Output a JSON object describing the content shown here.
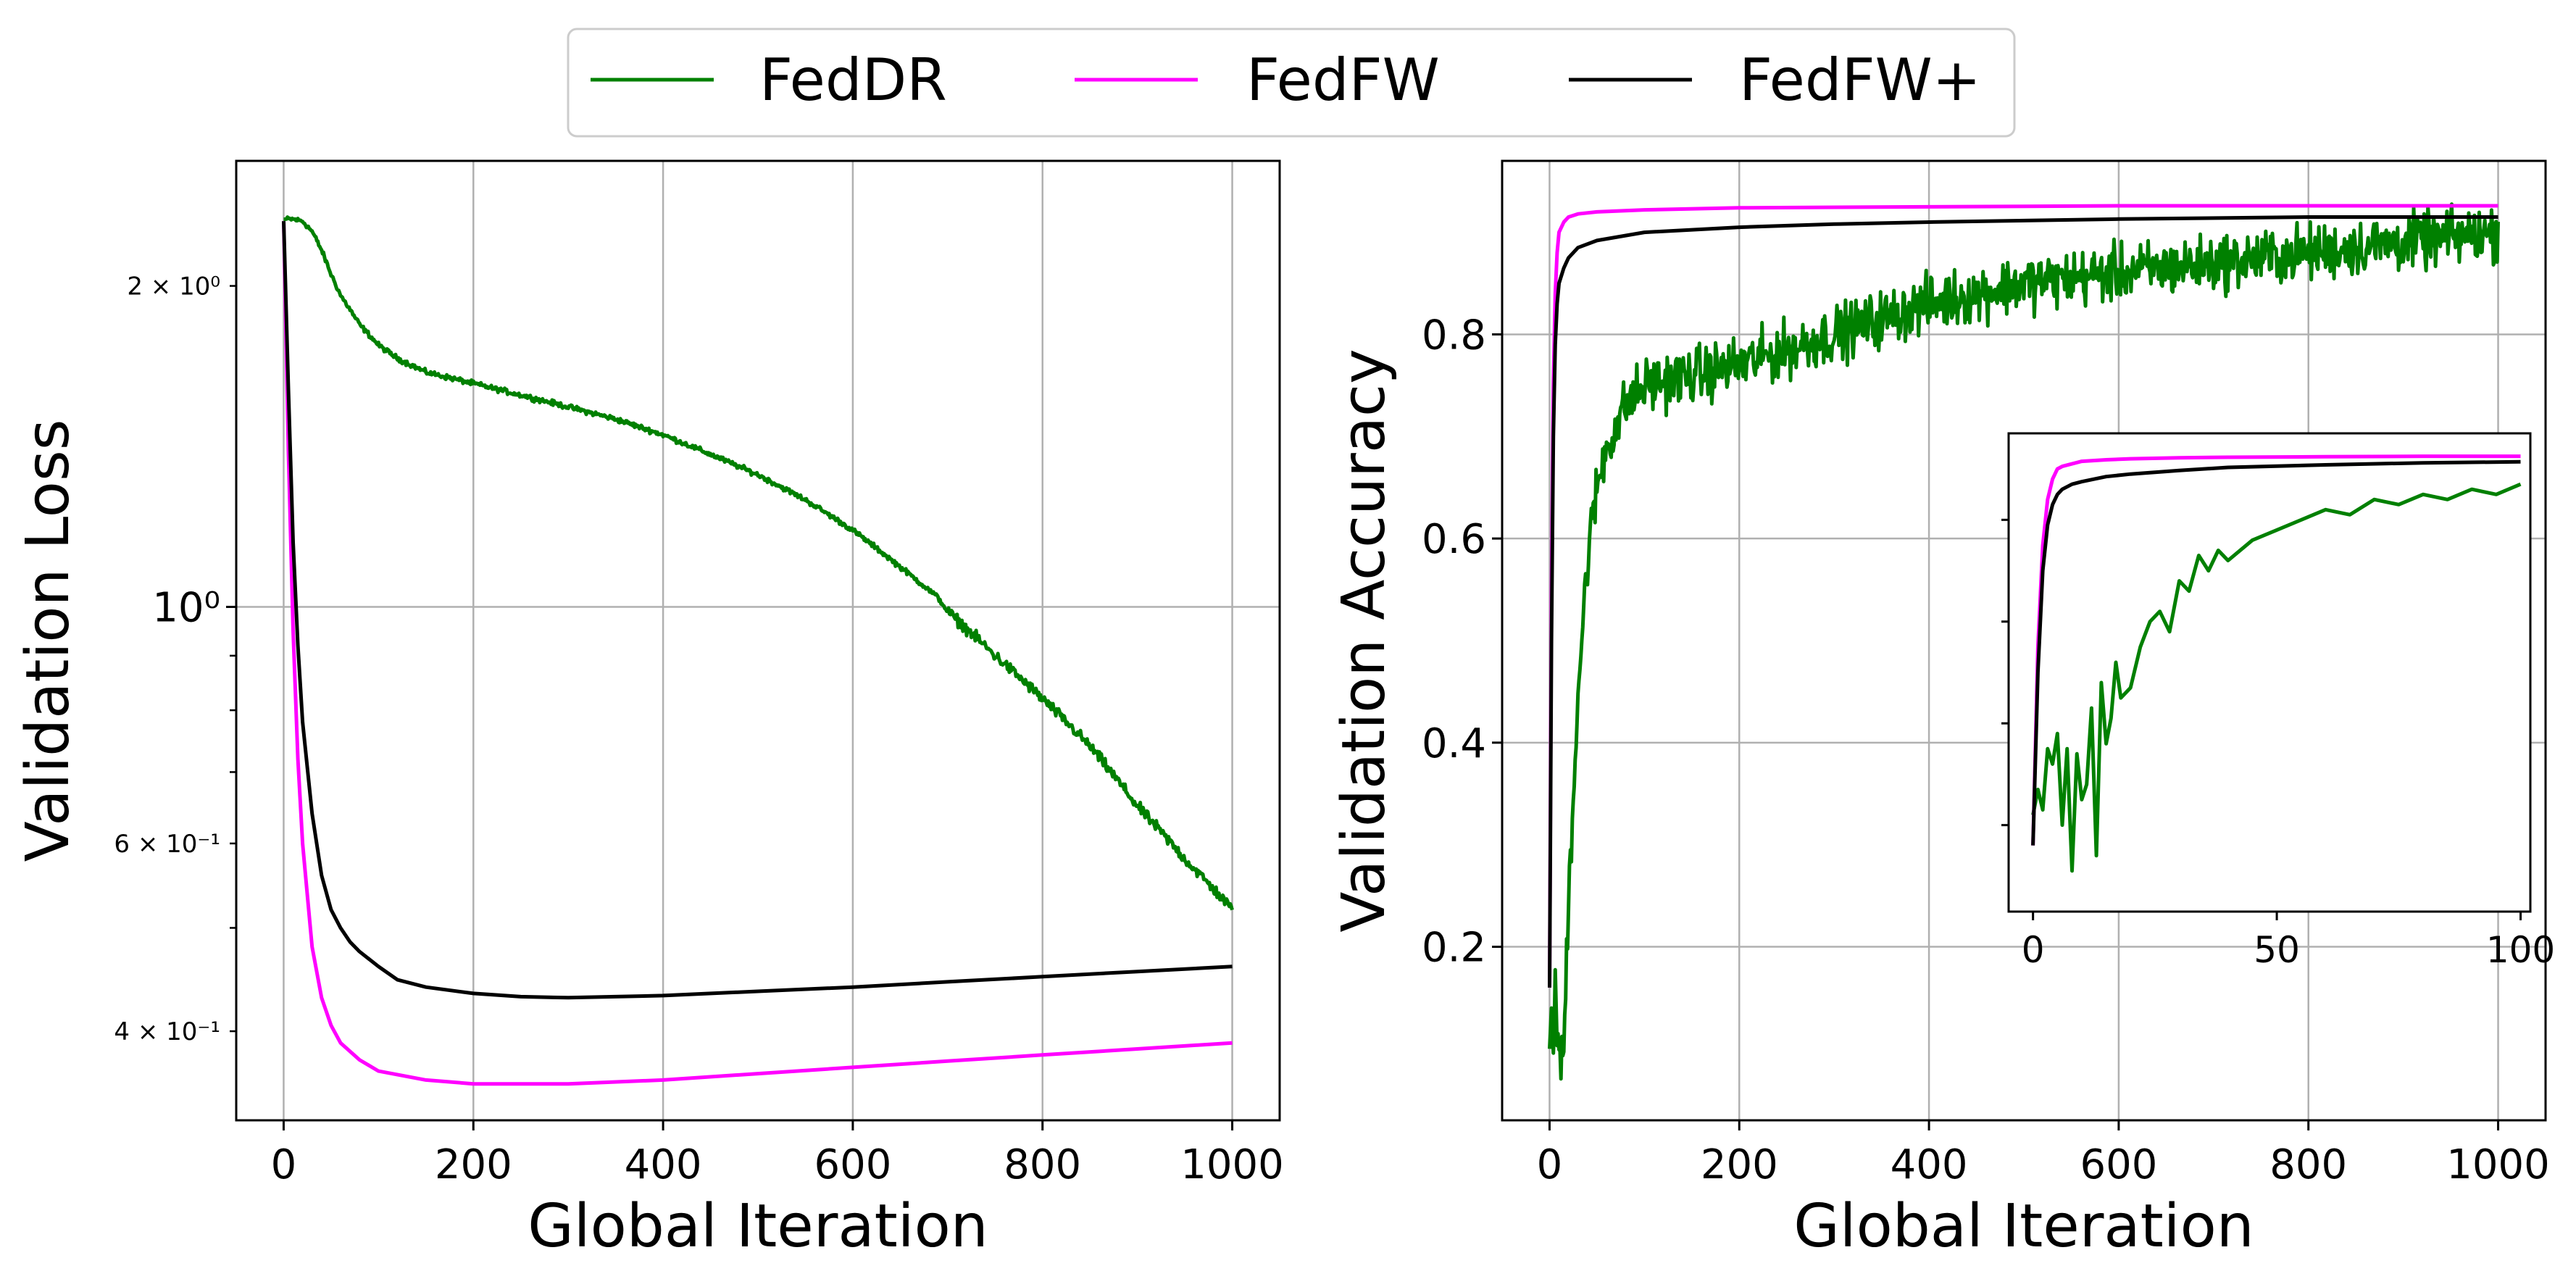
{
  "legend": {
    "items": [
      {
        "label": "FedDR",
        "color": "#008000"
      },
      {
        "label": "FedFW",
        "color": "#ff00ff"
      },
      {
        "label": "FedFW+",
        "color": "#000000"
      }
    ],
    "placement": "top-center"
  },
  "chart_data": [
    {
      "type": "line",
      "xlabel": "Global Iteration",
      "ylabel": "Validation Loss",
      "yscale": "log",
      "xlim": [
        -50,
        1050
      ],
      "ylim": [
        0.33,
        2.62
      ],
      "grid": true,
      "xticks": [
        {
          "v": 0,
          "label": "0"
        },
        {
          "v": 200,
          "label": "200"
        },
        {
          "v": 400,
          "label": "400"
        },
        {
          "v": 600,
          "label": "600"
        },
        {
          "v": 800,
          "label": "800"
        },
        {
          "v": 1000,
          "label": "1000"
        }
      ],
      "yticks": [
        {
          "v": 2.0,
          "label": "2 × 10⁰",
          "style": "small"
        },
        {
          "v": 1.0,
          "label": "10⁰",
          "style": "large"
        },
        {
          "v": 0.6,
          "label": "6 × 10⁻¹",
          "style": "small"
        },
        {
          "v": 0.4,
          "label": "4 × 10⁻¹",
          "style": "small"
        }
      ],
      "series": [
        {
          "name": "FedDR",
          "color": "#008000",
          "noise": 0.006,
          "x": [
            0,
            10,
            20,
            30,
            40,
            50,
            60,
            80,
            100,
            120,
            150,
            200,
            250,
            300,
            350,
            400,
            450,
            500,
            550,
            600,
            650,
            690,
            700,
            750,
            800,
            850,
            900,
            950,
            1000
          ],
          "y": [
            2.31,
            2.31,
            2.3,
            2.25,
            2.16,
            2.05,
            1.96,
            1.84,
            1.76,
            1.71,
            1.66,
            1.62,
            1.58,
            1.54,
            1.5,
            1.45,
            1.39,
            1.33,
            1.26,
            1.18,
            1.09,
            1.02,
            0.99,
            0.9,
            0.82,
            0.74,
            0.65,
            0.58,
            0.52
          ]
        },
        {
          "name": "FedFW",
          "color": "#ff00ff",
          "x": [
            0,
            5,
            10,
            15,
            20,
            30,
            40,
            50,
            60,
            80,
            100,
            150,
            200,
            300,
            400,
            500,
            600,
            700,
            800,
            900,
            1000
          ],
          "y": [
            2.3,
            1.4,
            0.95,
            0.72,
            0.6,
            0.48,
            0.43,
            0.405,
            0.39,
            0.376,
            0.367,
            0.36,
            0.357,
            0.357,
            0.36,
            0.365,
            0.37,
            0.375,
            0.38,
            0.385,
            0.39
          ]
        },
        {
          "name": "FedFW+",
          "color": "#000000",
          "x": [
            0,
            5,
            10,
            15,
            20,
            30,
            40,
            50,
            60,
            70,
            80,
            100,
            120,
            150,
            200,
            250,
            300,
            400,
            500,
            600,
            700,
            800,
            900,
            1000
          ],
          "y": [
            2.3,
            1.6,
            1.15,
            0.92,
            0.78,
            0.64,
            0.56,
            0.52,
            0.5,
            0.485,
            0.475,
            0.46,
            0.447,
            0.44,
            0.434,
            0.431,
            0.43,
            0.432,
            0.436,
            0.44,
            0.445,
            0.45,
            0.455,
            0.46
          ]
        }
      ]
    },
    {
      "type": "line",
      "xlabel": "Global Iteration",
      "ylabel": "Validation Accuracy",
      "yscale": "linear",
      "xlim": [
        -50,
        1050
      ],
      "ylim": [
        0.03,
        0.97
      ],
      "grid": true,
      "xticks": [
        {
          "v": 0,
          "label": "0"
        },
        {
          "v": 200,
          "label": "200"
        },
        {
          "v": 400,
          "label": "400"
        },
        {
          "v": 600,
          "label": "600"
        },
        {
          "v": 800,
          "label": "800"
        },
        {
          "v": 1000,
          "label": "1000"
        }
      ],
      "yticks": [
        {
          "v": 0.2,
          "label": "0.2"
        },
        {
          "v": 0.4,
          "label": "0.4"
        },
        {
          "v": 0.6,
          "label": "0.6"
        },
        {
          "v": 0.8,
          "label": "0.8"
        }
      ],
      "series": [
        {
          "name": "FedDR",
          "color": "#008000",
          "noise": 0.03,
          "x": [
            0,
            2,
            4,
            6,
            8,
            10,
            12,
            15,
            20,
            25,
            30,
            40,
            50,
            60,
            80,
            100,
            150,
            200,
            300,
            400,
            500,
            600,
            700,
            800,
            900,
            1000
          ],
          "y": [
            0.1,
            0.14,
            0.12,
            0.15,
            0.12,
            0.1,
            0.08,
            0.1,
            0.25,
            0.35,
            0.45,
            0.58,
            0.65,
            0.69,
            0.73,
            0.75,
            0.76,
            0.77,
            0.8,
            0.83,
            0.85,
            0.86,
            0.87,
            0.88,
            0.89,
            0.9
          ]
        },
        {
          "name": "FedFW",
          "color": "#ff00ff",
          "x": [
            0,
            2,
            4,
            6,
            8,
            10,
            15,
            20,
            30,
            50,
            100,
            200,
            400,
            600,
            800,
            1000
          ],
          "y": [
            0.16,
            0.55,
            0.75,
            0.84,
            0.88,
            0.9,
            0.91,
            0.915,
            0.918,
            0.92,
            0.922,
            0.924,
            0.925,
            0.926,
            0.926,
            0.926
          ]
        },
        {
          "name": "FedFW+",
          "color": "#000000",
          "x": [
            0,
            2,
            4,
            6,
            8,
            10,
            15,
            20,
            30,
            50,
            100,
            200,
            300,
            400,
            600,
            800,
            1000
          ],
          "y": [
            0.16,
            0.5,
            0.7,
            0.79,
            0.83,
            0.85,
            0.865,
            0.875,
            0.885,
            0.892,
            0.9,
            0.905,
            0.908,
            0.91,
            0.913,
            0.915,
            0.915
          ]
        }
      ],
      "inset": {
        "xlim": [
          -5,
          102
        ],
        "ylim": [
          0.03,
          0.97
        ],
        "grid": false,
        "xticks": [
          {
            "v": 0,
            "label": "0"
          },
          {
            "v": 50,
            "label": "50"
          },
          {
            "v": 100,
            "label": "100"
          }
        ],
        "series": [
          {
            "name": "FedDR",
            "color": "#008000",
            "x": [
              0,
              1,
              2,
              3,
              4,
              5,
              6,
              7,
              8,
              9,
              10,
              11,
              12,
              13,
              14,
              15,
              16,
              17,
              18,
              19,
              20,
              22,
              24,
              26,
              28,
              30,
              32,
              34,
              36,
              38,
              40,
              45,
              50,
              55,
              60,
              65,
              70,
              75,
              80,
              85,
              90,
              95,
              100
            ],
            "y": [
              0.22,
              0.27,
              0.23,
              0.35,
              0.32,
              0.38,
              0.2,
              0.35,
              0.11,
              0.34,
              0.25,
              0.28,
              0.43,
              0.14,
              0.48,
              0.36,
              0.41,
              0.52,
              0.45,
              0.46,
              0.47,
              0.55,
              0.6,
              0.62,
              0.58,
              0.68,
              0.66,
              0.73,
              0.7,
              0.74,
              0.72,
              0.76,
              0.78,
              0.8,
              0.82,
              0.81,
              0.84,
              0.83,
              0.85,
              0.84,
              0.86,
              0.85,
              0.87
            ]
          },
          {
            "name": "FedFW",
            "color": "#ff00ff",
            "x": [
              0,
              1,
              2,
              3,
              4,
              5,
              6,
              8,
              10,
              15,
              20,
              30,
              40,
              60,
              80,
              100
            ],
            "y": [
              0.16,
              0.55,
              0.75,
              0.84,
              0.88,
              0.9,
              0.905,
              0.91,
              0.915,
              0.918,
              0.92,
              0.922,
              0.923,
              0.924,
              0.925,
              0.925
            ]
          },
          {
            "name": "FedFW+",
            "color": "#000000",
            "x": [
              0,
              1,
              2,
              3,
              4,
              5,
              6,
              8,
              10,
              15,
              20,
              30,
              40,
              60,
              80,
              100
            ],
            "y": [
              0.16,
              0.5,
              0.7,
              0.79,
              0.83,
              0.85,
              0.86,
              0.87,
              0.875,
              0.885,
              0.89,
              0.897,
              0.903,
              0.908,
              0.912,
              0.914
            ]
          }
        ]
      }
    }
  ]
}
